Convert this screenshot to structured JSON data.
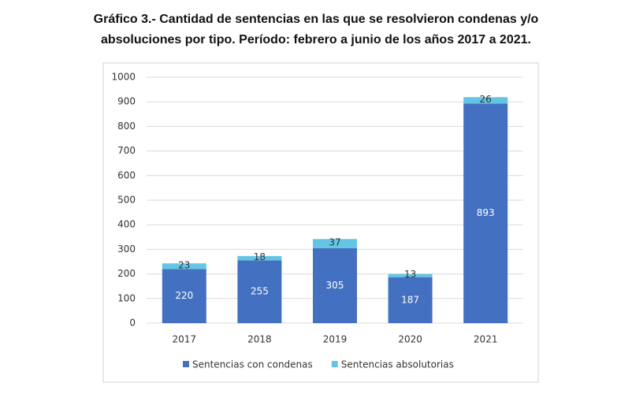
{
  "chart_data": {
    "type": "stacked-bar",
    "title": [
      "Gráfico 3.- Cantidad de sentencias en las que se resolvieron condenas y/o",
      "absoluciones por tipo. Período: febrero a junio de los años 2017 a 2021."
    ],
    "categories": [
      "2017",
      "2018",
      "2019",
      "2020",
      "2021"
    ],
    "series": [
      {
        "name": "Sentencias con condenas",
        "color": "#4370c0",
        "values": [
          220,
          255,
          305,
          187,
          893
        ]
      },
      {
        "name": "Sentencias absolutorias",
        "color": "#63c5e3",
        "values": [
          23,
          18,
          37,
          13,
          26
        ]
      }
    ],
    "ylim": [
      0,
      1000
    ],
    "yticks": [
      0,
      100,
      200,
      300,
      400,
      500,
      600,
      700,
      800,
      900,
      1000
    ],
    "grid": true,
    "legend": "bottom"
  }
}
